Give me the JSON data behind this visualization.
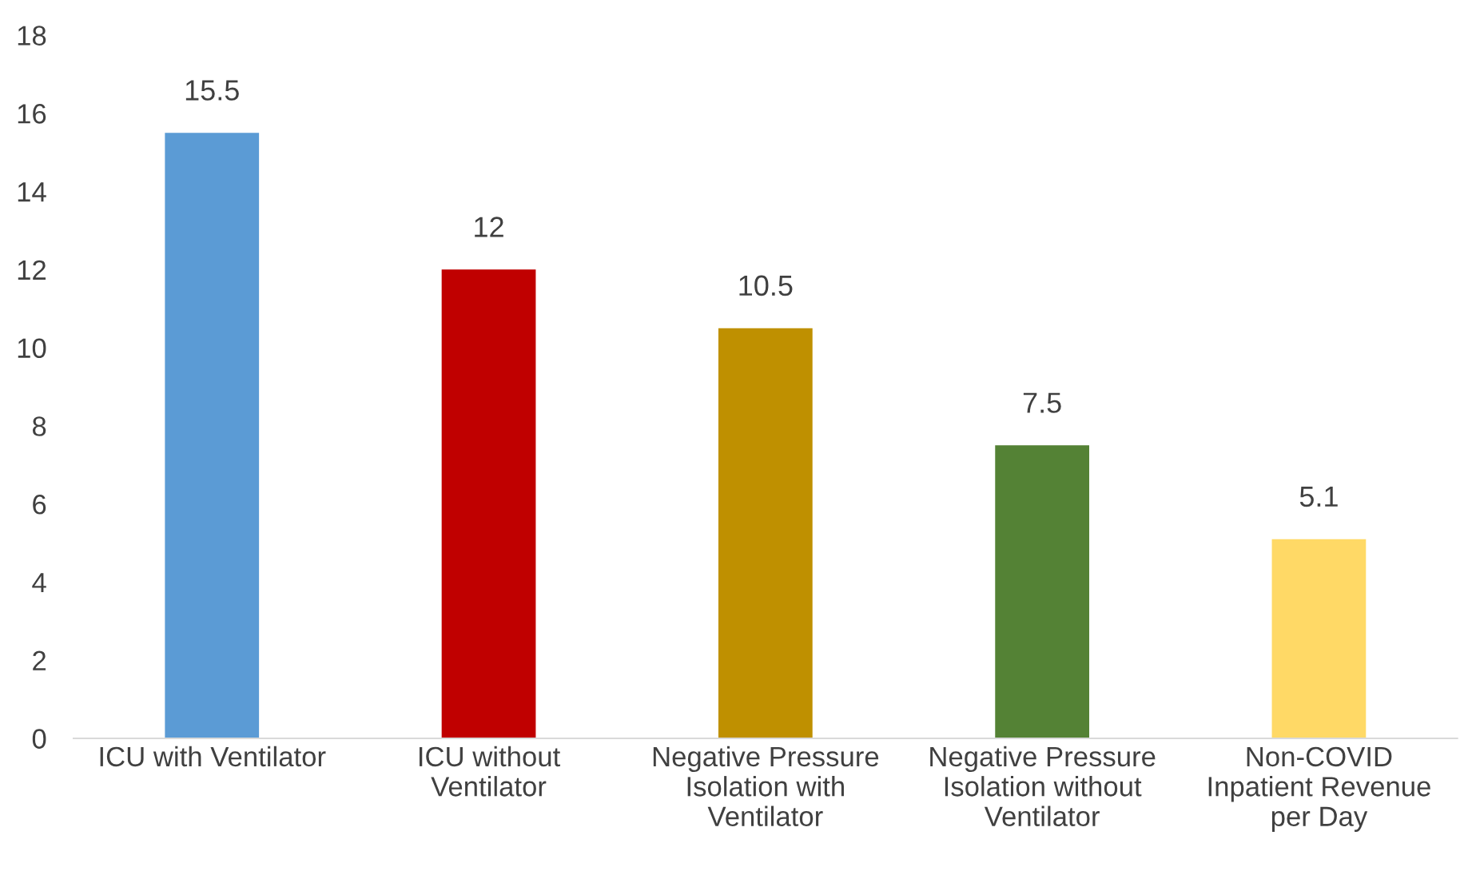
{
  "chart_data": {
    "type": "bar",
    "categories": [
      "ICU with Ventilator",
      "ICU without\nVentilator",
      "Negative Pressure\nIsolation with\nVentilator",
      "Negative Pressure\nIsolation without\nVentilator",
      "Non-COVID\nInpatient Revenue\nper Day"
    ],
    "values": [
      15.5,
      12,
      10.5,
      7.5,
      5.1
    ],
    "colors": [
      "#5b9bd5",
      "#c00000",
      "#bf9000",
      "#548235",
      "#ffd966"
    ],
    "ylim": [
      0,
      18
    ],
    "yticks": [
      0,
      2,
      4,
      6,
      8,
      10,
      12,
      14,
      16,
      18
    ],
    "data_labels": true,
    "grid": false,
    "legend": false
  }
}
